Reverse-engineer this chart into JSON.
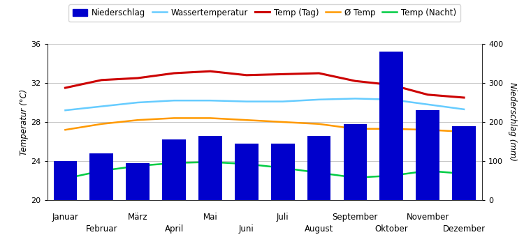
{
  "months": [
    "Januar",
    "Februar",
    "März",
    "April",
    "Mai",
    "Juni",
    "Juli",
    "August",
    "September",
    "Oktober",
    "November",
    "Dezember"
  ],
  "niederschlag": [
    100,
    120,
    95,
    155,
    165,
    145,
    145,
    165,
    195,
    380,
    230,
    190
  ],
  "wassertemperatur": [
    29.2,
    29.6,
    30.0,
    30.2,
    30.2,
    30.1,
    30.1,
    30.3,
    30.4,
    30.3,
    29.8,
    29.3
  ],
  "temp_tag": [
    31.5,
    32.3,
    32.5,
    33.0,
    33.2,
    32.8,
    32.9,
    33.0,
    32.2,
    31.8,
    30.8,
    30.5
  ],
  "avg_temp": [
    27.2,
    27.8,
    28.2,
    28.4,
    28.4,
    28.2,
    28.0,
    27.8,
    27.3,
    27.3,
    27.2,
    27.0
  ],
  "temp_nacht": [
    22.2,
    23.0,
    23.5,
    23.8,
    23.9,
    23.7,
    23.3,
    22.8,
    22.3,
    22.5,
    23.0,
    22.7
  ],
  "bar_color": "#0000cc",
  "wassertemperatur_color": "#66ccff",
  "temp_tag_color": "#cc0000",
  "avg_temp_color": "#ff9900",
  "temp_nacht_color": "#00cc44",
  "ylabel_left": "Temperatur (°C)",
  "ylabel_right": "Niederschlag (mm)",
  "ylim_left": [
    20,
    36
  ],
  "ylim_right": [
    0,
    400
  ],
  "yticks_left": [
    20,
    24,
    28,
    32,
    36
  ],
  "yticks_right": [
    0,
    100,
    200,
    300,
    400
  ],
  "legend_labels": [
    "Niederschlag",
    "Wassertemperatur",
    "Temp (Tag)",
    "Ø Temp",
    "Temp (Nacht)"
  ],
  "background_color": "#ffffff",
  "grid_color": "#bbbbbb"
}
